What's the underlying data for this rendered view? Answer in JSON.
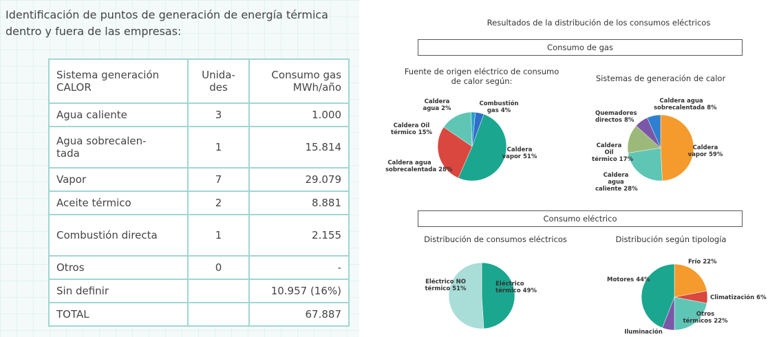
{
  "heading": "Identificación de puntos de generación de energía térmica dentro y fuera de las empresas:",
  "table": {
    "header": [
      "Sistema generación CALOR",
      "Unida-des",
      "Consumo gas MWh/año"
    ],
    "rows": [
      [
        "Agua caliente",
        "3",
        "1.000"
      ],
      [
        "Agua sobrecalen-tada",
        "1",
        "15.814"
      ],
      [
        "Vapor",
        "7",
        "29.079"
      ],
      [
        "Aceite térmico",
        "2",
        "8.881"
      ],
      [
        "Combustión directa",
        "1",
        "2.155"
      ],
      [
        "Otros",
        "0",
        "-"
      ],
      [
        "Sin definir",
        "",
        "10.957 (16%)"
      ],
      [
        "TOTAL",
        "",
        "67.887"
      ]
    ]
  },
  "results": {
    "title": "Resultados de la distribución de los consumos eléctricos",
    "sections": [
      "Consumo de gas",
      "Consumo eléctrico"
    ]
  },
  "chart_data": [
    {
      "type": "pie",
      "title": "Fuente de origen eléctrico de consumo de calor según:",
      "categories": [
        "Caldera vapor",
        "Caldera agua sobrecalentada",
        "Caldera Oil térmico",
        "Caldera agua",
        "Combustión gas"
      ],
      "values": [
        51,
        28,
        15,
        2,
        4
      ],
      "value_labels": [
        "51%",
        "28%",
        "15%",
        "2%",
        "4%"
      ],
      "colors": [
        "#1ba68f",
        "#d9473f",
        "#5fc6b6",
        "#2aa0c8",
        "#2f6fc9"
      ]
    },
    {
      "type": "pie",
      "title": "Sistemas de generación de calor",
      "categories": [
        "Caldera vapor",
        "Caldera agua caliente",
        "Caldera Oil térmico",
        "Quemadores directos",
        "Caldera agua sobrecalentada"
      ],
      "values": [
        59,
        28,
        17,
        8,
        8
      ],
      "value_labels": [
        "59%",
        "28%",
        "17%",
        "8%",
        "8%"
      ],
      "colors": [
        "#f59a2c",
        "#5fc6b6",
        "#9db97a",
        "#7b57a8",
        "#2f7fd0"
      ]
    },
    {
      "type": "pie",
      "title": "Distribución de consumos eléctricos",
      "categories": [
        "Eléctrico térmico",
        "Eléctrico NO térmico"
      ],
      "values": [
        49,
        51
      ],
      "value_labels": [
        "49%",
        "51%"
      ],
      "colors": [
        "#1ba68f",
        "#a9ddd7"
      ]
    },
    {
      "type": "pie",
      "title": "Distribución según tipología",
      "categories": [
        "Frío",
        "Climatización",
        "Otros térmicos",
        "Iluminación",
        "Motores"
      ],
      "values": [
        22,
        6,
        22,
        6,
        44
      ],
      "value_labels": [
        "22%",
        "6%",
        "22%",
        null,
        "44%"
      ],
      "colors": [
        "#f59a2c",
        "#d9473f",
        "#5fc6b6",
        "#7b57a8",
        "#1ba68f"
      ]
    }
  ]
}
